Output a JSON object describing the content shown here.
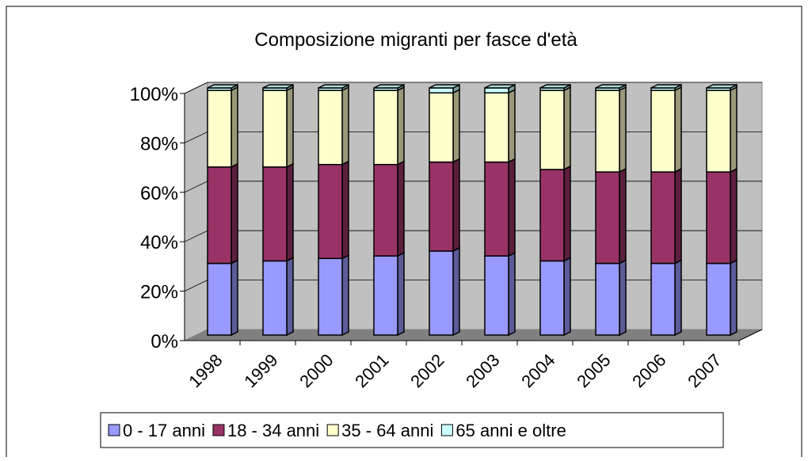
{
  "chart_data": {
    "type": "bar",
    "stacked": true,
    "three_d": true,
    "title": "Composizione migranti per fasce d'età",
    "categories": [
      "1998",
      "1999",
      "2000",
      "2001",
      "2002",
      "2003",
      "2004",
      "2005",
      "2006",
      "2007"
    ],
    "series": [
      {
        "name": "0 - 17 anni",
        "color": "#9999ff",
        "values": [
          29,
          30,
          31,
          32,
          34,
          32,
          30,
          29,
          29,
          29
        ]
      },
      {
        "name": "18 - 34 anni",
        "color": "#993366",
        "values": [
          39,
          38,
          38,
          37,
          36,
          38,
          37,
          37,
          37,
          37
        ]
      },
      {
        "name": "35 - 64 anni",
        "color": "#ffffcc",
        "values": [
          31,
          31,
          30,
          30,
          28,
          28,
          32,
          33,
          33,
          33
        ]
      },
      {
        "name": "65 anni e oltre",
        "color": "#ccffff",
        "values": [
          1,
          1,
          1,
          1,
          2,
          2,
          1,
          1,
          1,
          1
        ]
      }
    ],
    "ylim": [
      0,
      100
    ],
    "yticks": [
      {
        "value": 0,
        "label": "0%"
      },
      {
        "value": 20,
        "label": "20%"
      },
      {
        "value": 40,
        "label": "40%"
      },
      {
        "value": 60,
        "label": "60%"
      },
      {
        "value": 80,
        "label": "80%"
      },
      {
        "value": 100,
        "label": "100%"
      }
    ],
    "grid": true,
    "legend": "bottom"
  }
}
